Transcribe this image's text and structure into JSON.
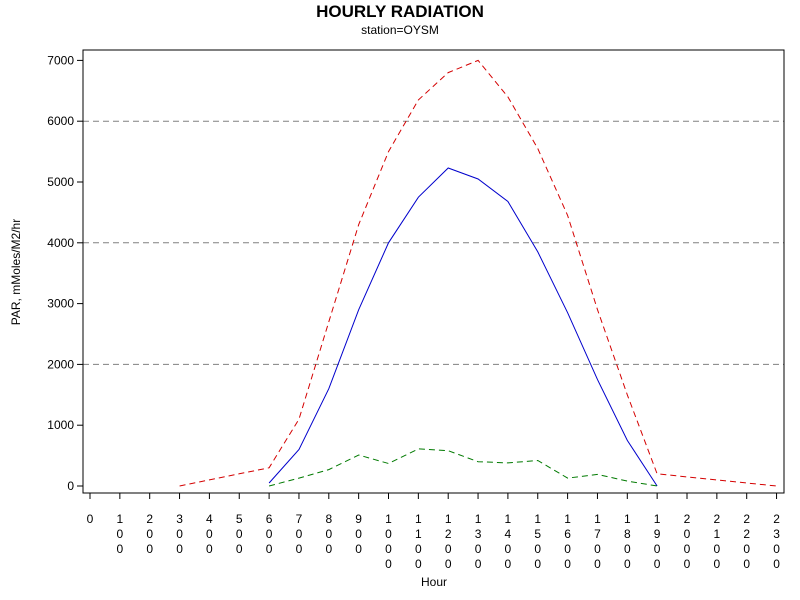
{
  "chart_data": {
    "type": "line",
    "title": "HOURLY RADIATION",
    "subtitle": "station=OYSM",
    "xlabel": "Hour",
    "ylabel": "PAR, mMoles/M2/hr",
    "x_ticks": [
      "0",
      "100",
      "200",
      "300",
      "400",
      "500",
      "600",
      "700",
      "800",
      "900",
      "1000",
      "1100",
      "1200",
      "1300",
      "1400",
      "1500",
      "1600",
      "1700",
      "1800",
      "1900",
      "2000",
      "2100",
      "2200",
      "2300"
    ],
    "y_ticks": [
      0,
      1000,
      2000,
      3000,
      4000,
      5000,
      6000,
      7000
    ],
    "xlim": [
      0,
      2300
    ],
    "ylim": [
      0,
      7000
    ],
    "grid_y_values": [
      2000,
      4000,
      6000
    ],
    "series": [
      {
        "color": "#d40000",
        "dash": "dashed",
        "points": [
          [
            300,
            0
          ],
          [
            400,
            100
          ],
          [
            500,
            200
          ],
          [
            600,
            300
          ],
          [
            700,
            1100
          ],
          [
            800,
            2700
          ],
          [
            900,
            4300
          ],
          [
            1000,
            5500
          ],
          [
            1100,
            6350
          ],
          [
            1200,
            6800
          ],
          [
            1300,
            7000
          ],
          [
            1400,
            6400
          ],
          [
            1500,
            5550
          ],
          [
            1600,
            4450
          ],
          [
            1700,
            2900
          ],
          [
            1800,
            1500
          ],
          [
            1900,
            200
          ],
          [
            2000,
            150
          ],
          [
            2100,
            100
          ],
          [
            2200,
            50
          ],
          [
            2300,
            0
          ]
        ]
      },
      {
        "color": "#0000cc",
        "dash": "solid",
        "points": [
          [
            600,
            50
          ],
          [
            700,
            600
          ],
          [
            800,
            1600
          ],
          [
            900,
            2900
          ],
          [
            1000,
            4000
          ],
          [
            1100,
            4750
          ],
          [
            1200,
            5230
          ],
          [
            1300,
            5050
          ],
          [
            1400,
            4680
          ],
          [
            1500,
            3850
          ],
          [
            1600,
            2850
          ],
          [
            1700,
            1750
          ],
          [
            1800,
            750
          ],
          [
            1900,
            0
          ]
        ]
      },
      {
        "color": "#007a00",
        "dash": "dashed",
        "points": [
          [
            600,
            0
          ],
          [
            700,
            130
          ],
          [
            800,
            270
          ],
          [
            900,
            510
          ],
          [
            1000,
            370
          ],
          [
            1100,
            610
          ],
          [
            1200,
            580
          ],
          [
            1300,
            400
          ],
          [
            1400,
            380
          ],
          [
            1500,
            420
          ],
          [
            1600,
            130
          ],
          [
            1700,
            190
          ],
          [
            1800,
            80
          ],
          [
            1900,
            0
          ]
        ]
      }
    ]
  }
}
